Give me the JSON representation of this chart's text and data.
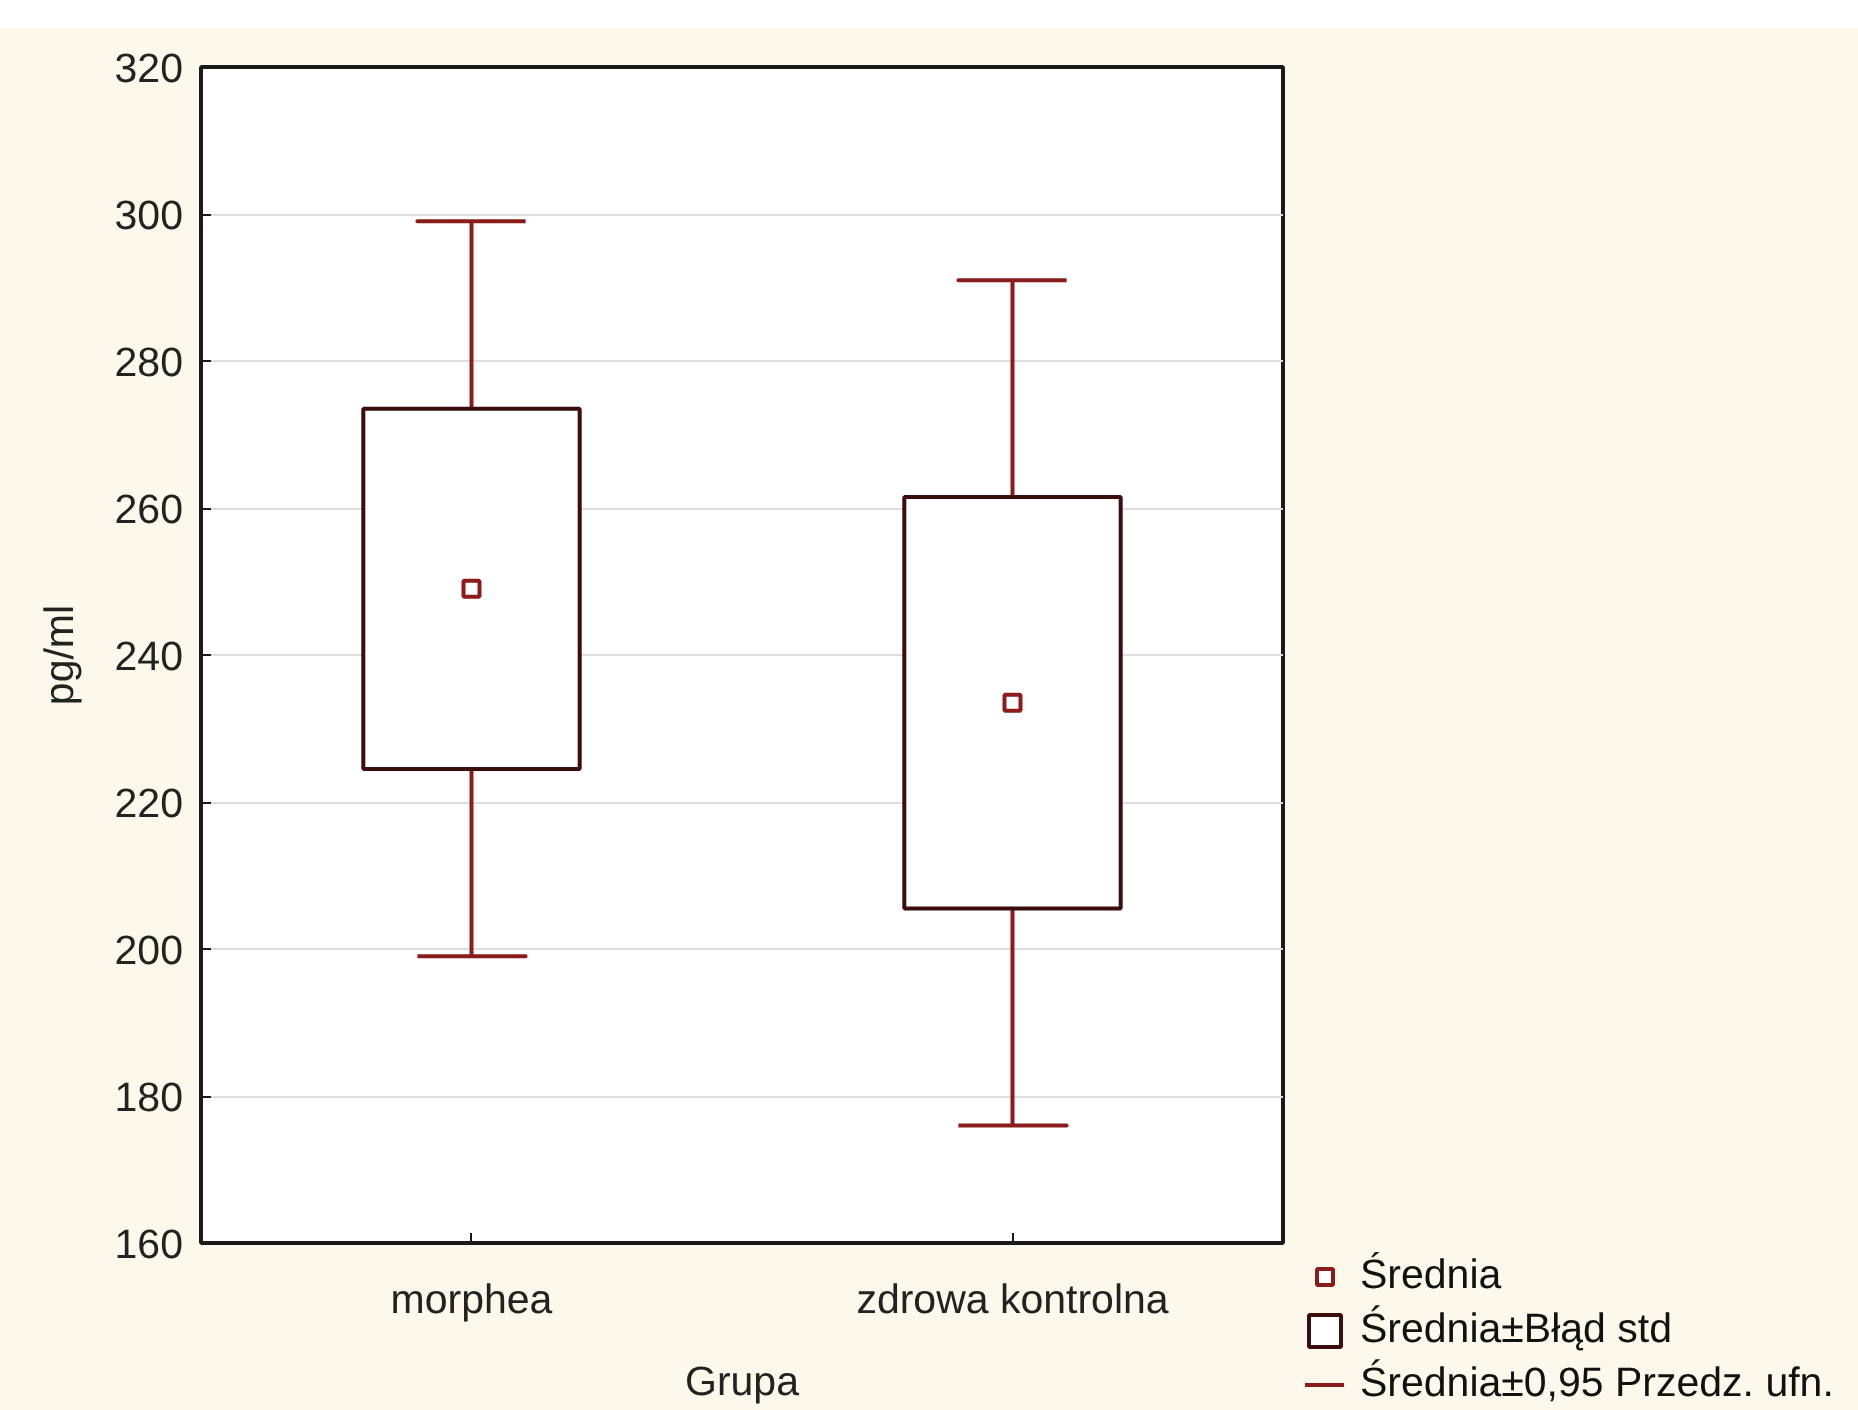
{
  "chart_data": {
    "type": "scatter",
    "xlabel": "Grupa",
    "ylabel": "pg/ml",
    "categories": [
      "morphea",
      "zdrowa kontrolna"
    ],
    "ylim": [
      160,
      320
    ],
    "yticks": [
      160,
      180,
      200,
      220,
      240,
      260,
      280,
      300,
      320
    ],
    "grid": "y",
    "legend": "bottom right",
    "series": [
      {
        "name": "Średnia",
        "marker": "square",
        "color": "#8b1c1c",
        "values": [
          249,
          233.5
        ],
        "errors": [
          50,
          57.5
        ]
      },
      {
        "name": "Średnia±Błąd std",
        "type": "bar",
        "color": "#3c0d0d",
        "base": [
          224.5,
          205.5
        ],
        "values": [
          49,
          56
        ]
      },
      {
        "name": "Średnia±0,95 Przedz. ufn.",
        "marker": "none",
        "color": "#8b1c1c",
        "values": [
          null,
          null
        ]
      }
    ]
  }
}
